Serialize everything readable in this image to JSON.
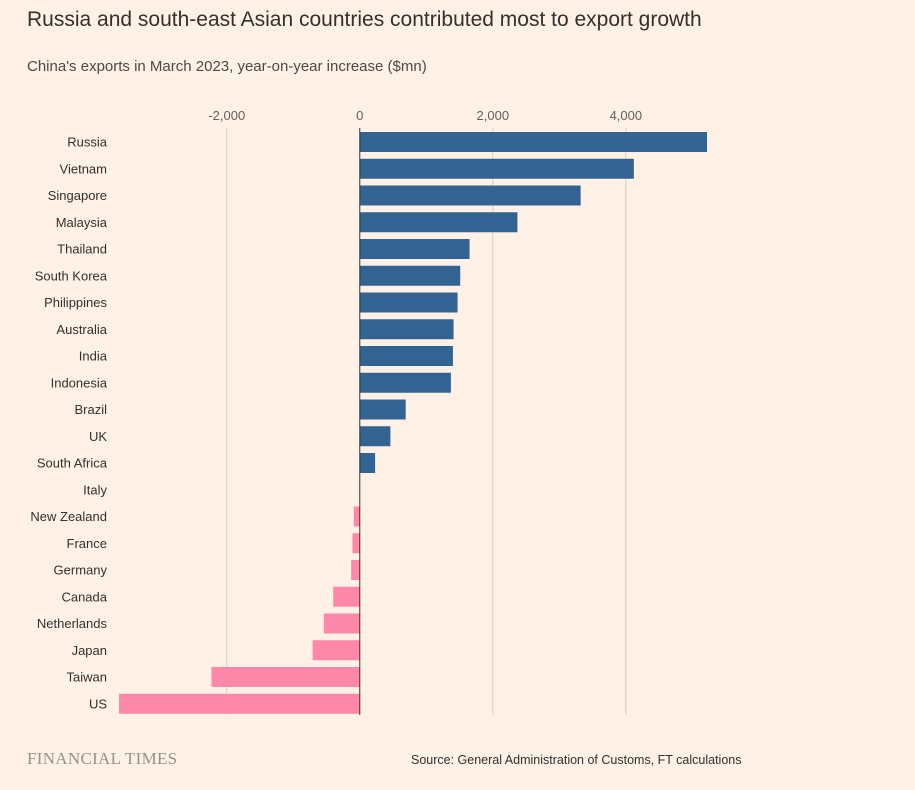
{
  "header": {
    "title": "Russia and south-east Asian countries contributed most to export growth",
    "subtitle": "China's exports in March 2023, year-on-year increase ($mn)"
  },
  "footer": {
    "brand": "FINANCIAL TIMES",
    "source": "Source: General Administration of Customs, FT calculations"
  },
  "colors": {
    "positive": "#336393",
    "negative": "#ff87a9",
    "background": "#fff1e5",
    "gridline": "#d9cdc2",
    "zero_line": "#33302e"
  },
  "chart_data": {
    "type": "bar",
    "orientation": "horizontal",
    "title": "Russia and south-east Asian countries contributed most to export growth",
    "subtitle": "China's exports in March 2023, year-on-year increase ($mn)",
    "categories": [
      "Russia",
      "Vietnam",
      "Singapore",
      "Malaysia",
      "Thailand",
      "South Korea",
      "Philippines",
      "Australia",
      "India",
      "Indonesia",
      "Brazil",
      "UK",
      "South Africa",
      "Italy",
      "New Zealand",
      "France",
      "Germany",
      "Canada",
      "Netherlands",
      "Japan",
      "Taiwan",
      "US"
    ],
    "values": [
      5220,
      4120,
      3320,
      2370,
      1650,
      1510,
      1470,
      1410,
      1400,
      1370,
      690,
      460,
      230,
      0,
      -90,
      -110,
      -130,
      -400,
      -540,
      -710,
      -2230,
      -3620
    ],
    "xlim": [
      -3620,
      5220
    ],
    "x_ticks": [
      -2000,
      0,
      2000,
      4000
    ],
    "x_tick_labels": [
      "-2,000",
      "0",
      "2,000",
      "4,000"
    ],
    "grid": true,
    "axis_position": "top"
  }
}
